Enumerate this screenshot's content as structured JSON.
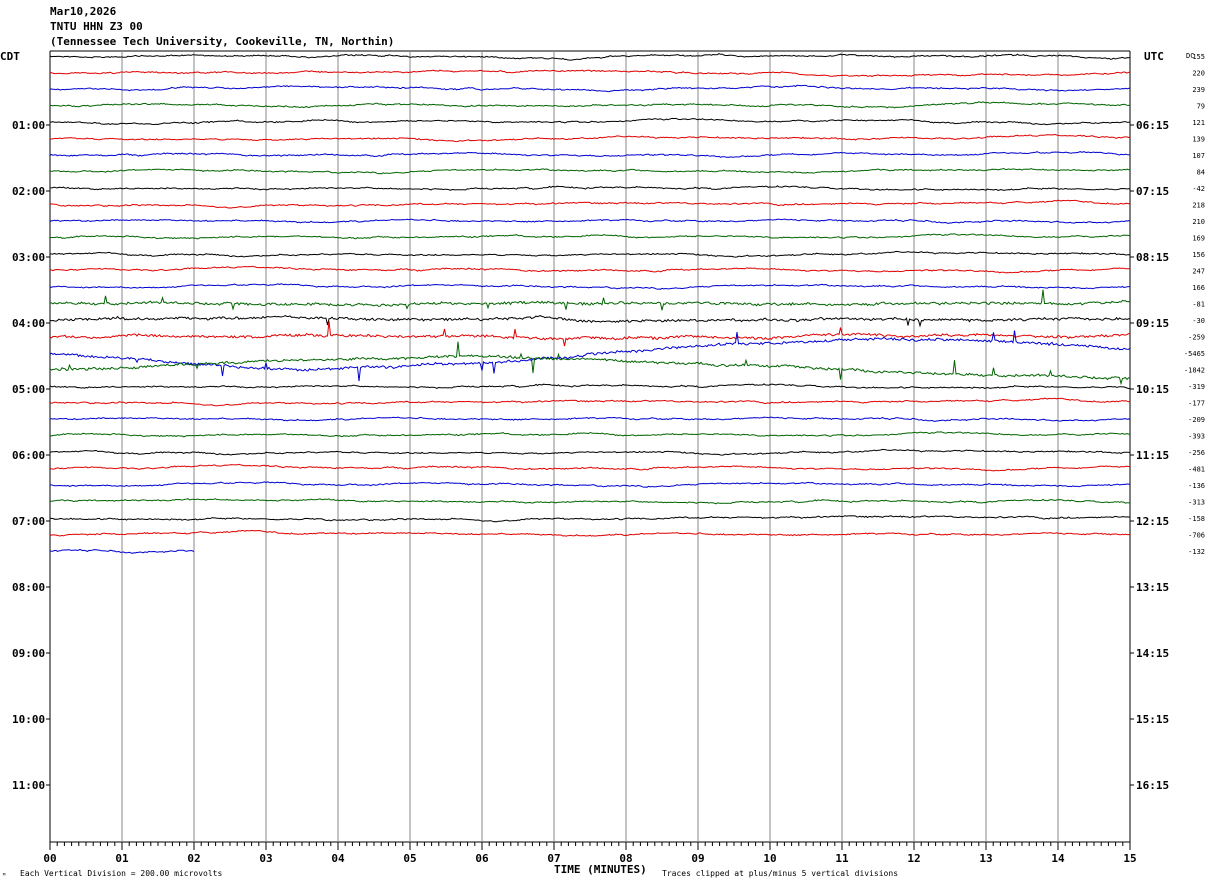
{
  "header": {
    "date": "Mar10,2026",
    "station": "TNTU HHN Z3 00",
    "location": "(Tennessee Tech University, Cookeville, TN, Northin)"
  },
  "left_axis_title": "CDT",
  "right_axis_title": "UTC",
  "dc_title": "DC",
  "footer": {
    "scale_note": "Each Vertical Division = 200.00 microvolts",
    "xlabel": "TIME (MINUTES)",
    "clip_note": "Traces clipped at plus/minus 5 vertical divisions",
    "corner_mark": "ᴹ"
  },
  "chart_data": {
    "type": "line",
    "title": "TNTU HHN Z3 00",
    "xlabel": "TIME (MINUTES)",
    "xlim": [
      0,
      15
    ],
    "x_ticks": [
      "00",
      "01",
      "02",
      "03",
      "04",
      "05",
      "06",
      "07",
      "08",
      "09",
      "10",
      "11",
      "12",
      "13",
      "14",
      "15"
    ],
    "grid": "vertical lines each minute",
    "left_time_labels": [
      "01:00",
      "02:00",
      "03:00",
      "04:00",
      "05:00",
      "06:00",
      "07:00",
      "08:00",
      "09:00",
      "10:00",
      "11:00"
    ],
    "right_time_labels": [
      "06:15",
      "07:15",
      "08:15",
      "09:15",
      "10:15",
      "11:15",
      "12:15",
      "13:15",
      "14:15",
      "15:15",
      "16:15"
    ],
    "traces_per_hour": 4,
    "trace_colors": [
      "#000000",
      "#e00000",
      "#0000d0",
      "#006400"
    ],
    "dc_offsets": [
      "155",
      "220",
      "239",
      "79",
      "121",
      "139",
      "107",
      "84",
      "-42",
      "218",
      "210",
      "169",
      "156",
      "247",
      "166",
      "-81",
      "-30",
      "-259",
      "-5465",
      "-1842",
      "-319",
      "-177",
      "-209",
      "-393",
      "-256",
      "-481",
      "-136",
      "-313",
      "-158",
      "-706",
      "-132"
    ],
    "last_trace_minutes": 2
  }
}
